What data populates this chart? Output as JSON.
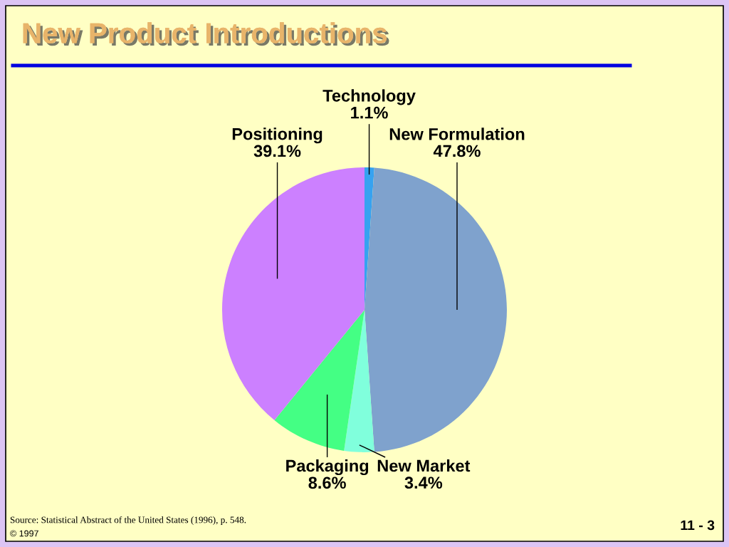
{
  "chart_data": {
    "type": "pie",
    "title": "New Product Introductions",
    "categories": [
      "Technology",
      "New Formulation",
      "New Market",
      "Packaging",
      "Positioning"
    ],
    "values": [
      1.1,
      47.8,
      3.4,
      8.6,
      39.1
    ],
    "colors": [
      "#36a2f0",
      "#7fa2cd",
      "#80ffdc",
      "#44ff84",
      "#cc80ff"
    ],
    "value_labels": [
      "1.1%",
      "47.8%",
      "3.4%",
      "8.6%",
      "39.1%"
    ],
    "annotations": [
      "Source: Statistical Abstract of the United States (1996), p. 548.",
      "© 1997",
      "11 - 3"
    ]
  }
}
